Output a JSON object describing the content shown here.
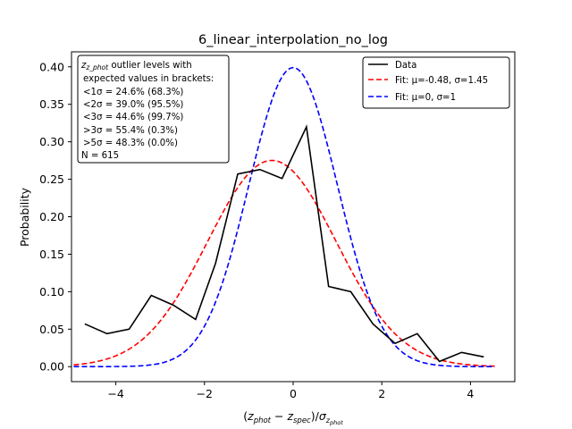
{
  "chart_data": {
    "type": "line",
    "title": "6_linear_interpolation_no_log",
    "xlabel": "(z_phot − z_spec)/σ_z_phot",
    "ylabel": "Probability",
    "xlim": [
      -5.0,
      5.0
    ],
    "ylim": [
      -0.02,
      0.42
    ],
    "xticks": [
      -4,
      -2,
      0,
      2,
      4
    ],
    "xtick_labels": [
      "−4",
      "−2",
      "0",
      "2",
      "4"
    ],
    "yticks": [
      0.0,
      0.05,
      0.1,
      0.15,
      0.2,
      0.25,
      0.3,
      0.35,
      0.4
    ],
    "ytick_labels": [
      "0.00",
      "0.05",
      "0.10",
      "0.15",
      "0.20",
      "0.25",
      "0.30",
      "0.35",
      "0.40"
    ],
    "grid": false,
    "legend_position": "top-right",
    "series": [
      {
        "name": "Data",
        "color": "#000000",
        "dash": "solid",
        "x": [
          -4.7,
          -4.2,
          -3.7,
          -3.2,
          -2.7,
          -2.2,
          -1.75,
          -1.25,
          -0.75,
          -0.25,
          0.3,
          0.8,
          1.3,
          1.8,
          2.3,
          2.8,
          3.3,
          3.8,
          4.3
        ],
        "y": [
          0.057,
          0.044,
          0.05,
          0.095,
          0.082,
          0.063,
          0.138,
          0.257,
          0.263,
          0.251,
          0.32,
          0.107,
          0.1,
          0.057,
          0.031,
          0.044,
          0.007,
          0.019,
          0.013
        ]
      },
      {
        "name": "Fit: μ=-0.48, σ=1.45",
        "color": "#ff0000",
        "dash": "dashed",
        "gaussian": {
          "mu": -0.48,
          "sigma": 1.45
        },
        "x_range": [
          -4.95,
          4.55
        ]
      },
      {
        "name": "Fit: μ=0, σ=1",
        "color": "#0000ff",
        "dash": "dashed",
        "gaussian": {
          "mu": 0,
          "sigma": 1
        },
        "x_range": [
          -4.95,
          4.55
        ]
      }
    ],
    "annotation": {
      "header_math": "z_phot",
      "header_rest": " outlier levels with",
      "lines": [
        "expected values in brackets:",
        "<1σ = 24.6% (68.3%)",
        "<2σ = 39.0% (95.5%)",
        "<3σ = 44.6% (99.7%)",
        ">3σ = 55.4% (0.3%)",
        ">5σ = 48.3% (0.0%)",
        "N = 615"
      ]
    }
  }
}
